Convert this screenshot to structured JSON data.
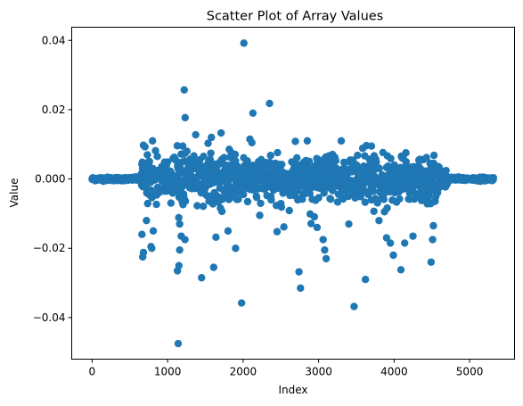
{
  "chart_data": {
    "type": "scatter",
    "title": "Scatter Plot of Array Values",
    "xlabel": "Index",
    "ylabel": "Value",
    "xlim": [
      -270,
      5595
    ],
    "ylim": [
      -0.052,
      0.0438
    ],
    "xticks": [
      0,
      1000,
      2000,
      3000,
      4000,
      5000
    ],
    "xtick_labels": [
      "0",
      "1000",
      "2000",
      "3000",
      "4000",
      "5000"
    ],
    "yticks": [
      -0.04,
      -0.02,
      0.0,
      0.02,
      0.04
    ],
    "ytick_labels": [
      "−0.04",
      "−0.02",
      "0.000",
      "0.02",
      "0.04"
    ],
    "grid": false,
    "marker_color": "#1f77b4",
    "n_points_approx": 5320,
    "envelope_description": "dense band near zero across indices 0-5320; amplitude small (~0.0005) for indices <650 and >4700, larger (~0.005-0.01) for 650-4650",
    "outliers": [
      {
        "x": 660,
        "y": -0.016
      },
      {
        "x": 670,
        "y": -0.0225
      },
      {
        "x": 680,
        "y": -0.0212
      },
      {
        "x": 700,
        "y": 0.0093
      },
      {
        "x": 720,
        "y": -0.012
      },
      {
        "x": 780,
        "y": -0.0195
      },
      {
        "x": 790,
        "y": -0.02
      },
      {
        "x": 800,
        "y": 0.011
      },
      {
        "x": 810,
        "y": -0.015
      },
      {
        "x": 1140,
        "y": -0.0475
      },
      {
        "x": 1130,
        "y": -0.0265
      },
      {
        "x": 1150,
        "y": -0.025
      },
      {
        "x": 1160,
        "y": -0.0205
      },
      {
        "x": 1160,
        "y": -0.013
      },
      {
        "x": 1180,
        "y": -0.0165
      },
      {
        "x": 1220,
        "y": 0.0257
      },
      {
        "x": 1230,
        "y": -0.0175
      },
      {
        "x": 1200,
        "y": 0.0095
      },
      {
        "x": 1450,
        "y": -0.0285
      },
      {
        "x": 1580,
        "y": 0.012
      },
      {
        "x": 1610,
        "y": -0.0255
      },
      {
        "x": 1640,
        "y": -0.0168
      },
      {
        "x": 1800,
        "y": -0.015
      },
      {
        "x": 1900,
        "y": -0.02
      },
      {
        "x": 1980,
        "y": -0.0358
      },
      {
        "x": 2010,
        "y": 0.0392
      },
      {
        "x": 2130,
        "y": 0.019
      },
      {
        "x": 2090,
        "y": 0.0115
      },
      {
        "x": 2220,
        "y": -0.0105
      },
      {
        "x": 2350,
        "y": 0.0218
      },
      {
        "x": 2450,
        "y": -0.0152
      },
      {
        "x": 2740,
        "y": -0.0268
      },
      {
        "x": 2760,
        "y": -0.0315
      },
      {
        "x": 2850,
        "y": 0.011
      },
      {
        "x": 2980,
        "y": -0.014
      },
      {
        "x": 3060,
        "y": -0.0175
      },
      {
        "x": 3100,
        "y": -0.023
      },
      {
        "x": 3080,
        "y": -0.0205
      },
      {
        "x": 3300,
        "y": 0.011
      },
      {
        "x": 3400,
        "y": -0.013
      },
      {
        "x": 3470,
        "y": -0.0368
      },
      {
        "x": 3620,
        "y": -0.029
      },
      {
        "x": 3700,
        "y": 0.0095
      },
      {
        "x": 3800,
        "y": -0.012
      },
      {
        "x": 3900,
        "y": -0.017
      },
      {
        "x": 3950,
        "y": -0.0185
      },
      {
        "x": 3990,
        "y": -0.022
      },
      {
        "x": 4090,
        "y": -0.0262
      },
      {
        "x": 4140,
        "y": -0.0185
      },
      {
        "x": 4250,
        "y": -0.0165
      },
      {
        "x": 4490,
        "y": -0.024
      },
      {
        "x": 4510,
        "y": -0.0175
      },
      {
        "x": 4520,
        "y": -0.0135
      }
    ]
  }
}
